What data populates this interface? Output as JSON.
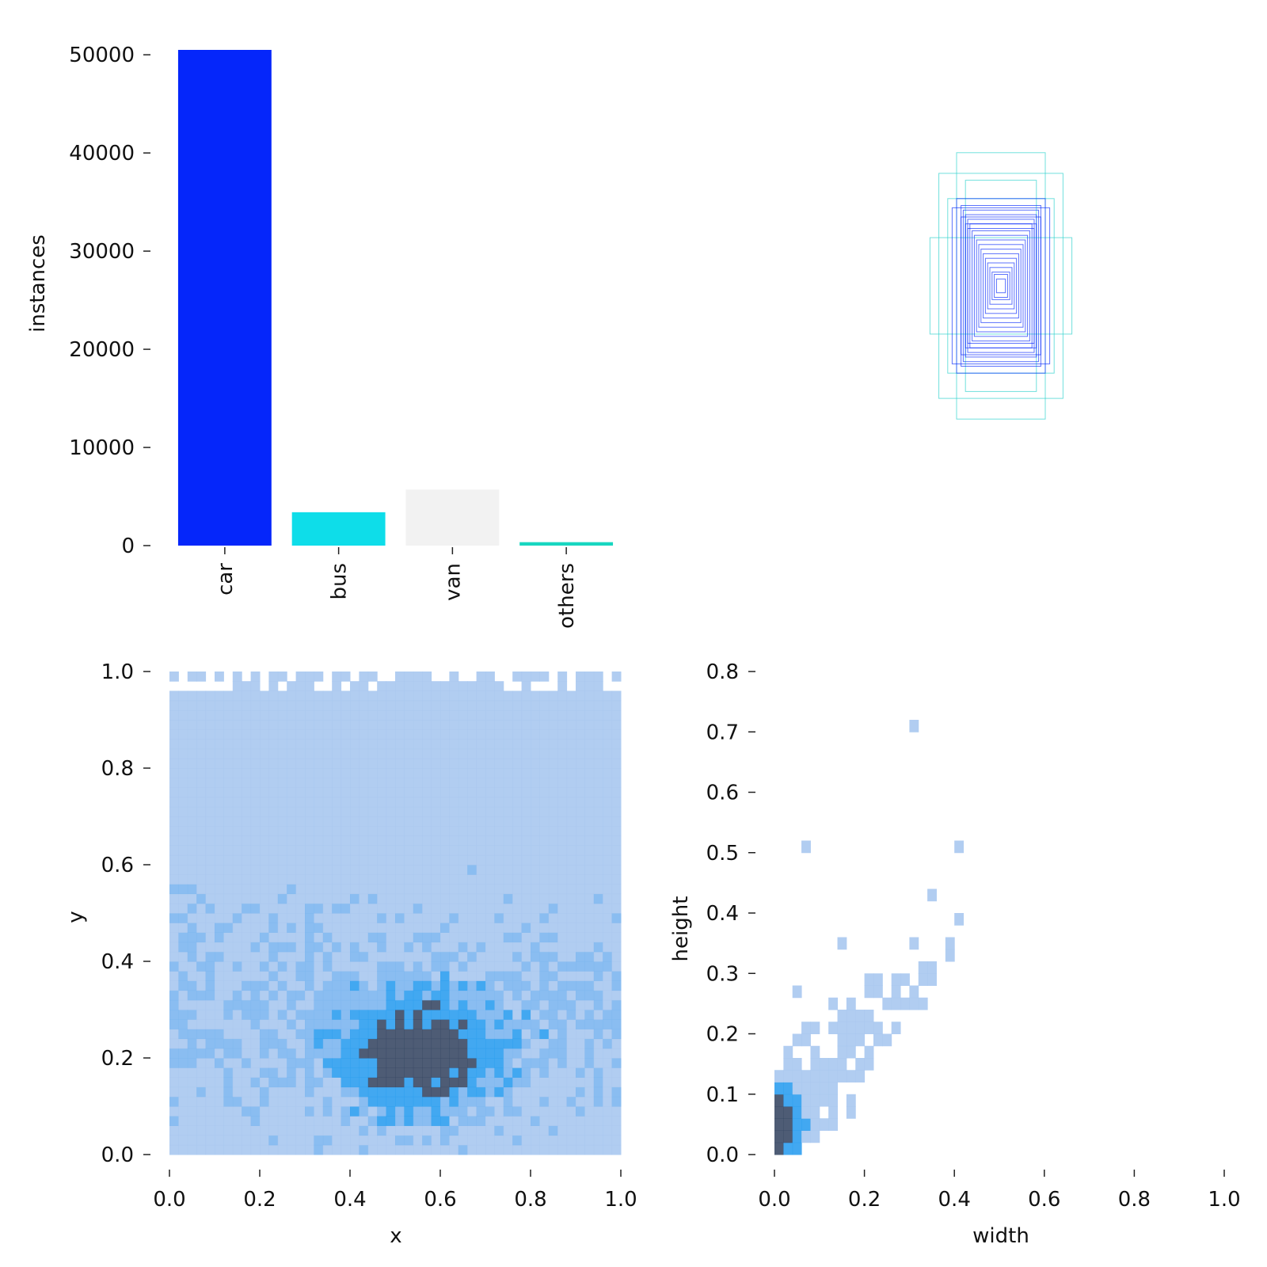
{
  "chart_data": [
    {
      "type": "bar",
      "panel": "class-counts",
      "categories": [
        "car",
        "bus",
        "van",
        "others"
      ],
      "values": [
        50500,
        3400,
        5700,
        350
      ],
      "colors": [
        "#0526fa",
        "#0edde9",
        "#f2f2f2",
        "#18d6c0"
      ],
      "ylabel": "instances",
      "yticks": [
        0,
        10000,
        20000,
        30000,
        40000,
        50000
      ],
      "ytick_labels": [
        "0",
        "10000",
        "20000",
        "30000",
        "40000",
        "50000"
      ],
      "ylim": [
        0,
        50500
      ]
    },
    {
      "type": "box-overlay",
      "panel": "box-shapes",
      "description_colors": {
        "dense": "#0526fa",
        "light": "#35d3cf"
      },
      "boxes": [
        {
          "w": 0.2,
          "h": 0.58,
          "color": "#35d3cf"
        },
        {
          "w": 0.28,
          "h": 0.49,
          "color": "#35d3cf"
        },
        {
          "w": 0.16,
          "h": 0.46,
          "color": "#35d3cf"
        },
        {
          "w": 0.32,
          "h": 0.21,
          "color": "#35d3cf"
        },
        {
          "w": 0.24,
          "h": 0.38,
          "color": "#35d3cf"
        },
        {
          "w": 0.2,
          "h": 0.38,
          "color": "#0526fa"
        },
        {
          "w": 0.22,
          "h": 0.34,
          "color": "#0526fa"
        },
        {
          "w": 0.18,
          "h": 0.35,
          "color": "#0526fa"
        },
        {
          "w": 0.17,
          "h": 0.33,
          "color": "#0526fa"
        },
        {
          "w": 0.16,
          "h": 0.31,
          "color": "#0526fa"
        },
        {
          "w": 0.18,
          "h": 0.3,
          "color": "#0526fa"
        },
        {
          "w": 0.15,
          "h": 0.29,
          "color": "#0526fa"
        },
        {
          "w": 0.16,
          "h": 0.27,
          "color": "#0526fa"
        },
        {
          "w": 0.14,
          "h": 0.27,
          "color": "#0526fa"
        },
        {
          "w": 0.15,
          "h": 0.25,
          "color": "#0526fa"
        },
        {
          "w": 0.13,
          "h": 0.24,
          "color": "#0526fa"
        },
        {
          "w": 0.12,
          "h": 0.22,
          "color": "#0526fa"
        },
        {
          "w": 0.11,
          "h": 0.2,
          "color": "#0526fa"
        },
        {
          "w": 0.1,
          "h": 0.18,
          "color": "#0526fa"
        },
        {
          "w": 0.09,
          "h": 0.16,
          "color": "#0526fa"
        },
        {
          "w": 0.08,
          "h": 0.14,
          "color": "#0526fa"
        },
        {
          "w": 0.07,
          "h": 0.12,
          "color": "#0526fa"
        },
        {
          "w": 0.06,
          "h": 0.1,
          "color": "#0526fa"
        },
        {
          "w": 0.05,
          "h": 0.08,
          "color": "#0526fa"
        },
        {
          "w": 0.04,
          "h": 0.06,
          "color": "#0526fa"
        },
        {
          "w": 0.03,
          "h": 0.05,
          "color": "#0526fa"
        },
        {
          "w": 0.02,
          "h": 0.03,
          "color": "#0526fa"
        }
      ]
    },
    {
      "type": "heatmap",
      "panel": "xy-histogram",
      "xlabel": "x",
      "ylabel": "y",
      "xlim": [
        0,
        1
      ],
      "ylim": [
        0,
        1
      ],
      "xticks": [
        "0.0",
        "0.2",
        "0.4",
        "0.6",
        "0.8",
        "1.0"
      ],
      "yticks": [
        "0.0",
        "0.2",
        "0.4",
        "0.6",
        "0.8",
        "1.0"
      ],
      "bins": 50,
      "colors": {
        "low": "#a9c8f0",
        "mid": "#2e9ff0",
        "high": "#3b4a66"
      },
      "density_note_peak": [
        0.55,
        0.2
      ]
    },
    {
      "type": "heatmap",
      "panel": "wh-histogram",
      "xlabel": "width",
      "ylabel": "height",
      "xlim": [
        0,
        1
      ],
      "ylim": [
        0,
        0.8
      ],
      "xticks": [
        "0.0",
        "0.2",
        "0.4",
        "0.6",
        "0.8",
        "1.0"
      ],
      "yticks": [
        "0.0",
        "0.1",
        "0.2",
        "0.3",
        "0.4",
        "0.5",
        "0.6",
        "0.7",
        "0.8"
      ],
      "bins": 50,
      "colors": {
        "low": "#a9c8f0",
        "mid": "#2e9ff0",
        "high": "#3b4a66"
      },
      "density_note_peak": [
        0.04,
        0.05
      ]
    }
  ]
}
